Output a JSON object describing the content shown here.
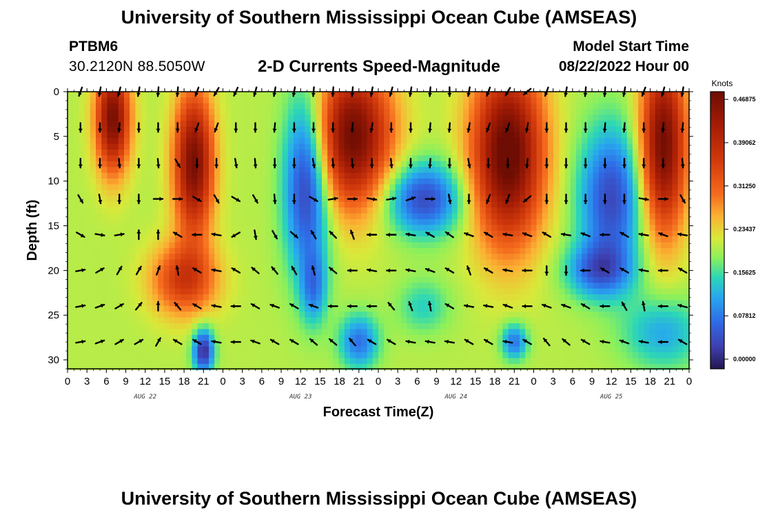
{
  "header": {
    "title_top": "University of Southern Mississippi Ocean Cube (AMSEAS)",
    "title_bottom": "University of Southern Mississippi Ocean Cube (AMSEAS)",
    "station": "PTBM6",
    "coordinates": "30.2120N  88.5050W",
    "subtitle": "2-D Currents Speed-Magnitude",
    "start_label": "Model Start Time",
    "start_value": "08/22/2022 Hour 00"
  },
  "chart_data": {
    "type": "heatmap",
    "title": "2-D Currents Speed-Magnitude",
    "xlabel": "Forecast Time(Z)",
    "ylabel": "Depth (ft)",
    "x_range_hours": [
      0,
      96
    ],
    "y_range_ft": [
      0,
      31
    ],
    "x_tick_hours": [
      0,
      3,
      6,
      9,
      12,
      15,
      18,
      21,
      24,
      27,
      30,
      33,
      36,
      39,
      42,
      45,
      48,
      51,
      54,
      57,
      60,
      63,
      66,
      69,
      72,
      75,
      78,
      81,
      84,
      87,
      90,
      93,
      96
    ],
    "x_tick_labels": [
      "0",
      "3",
      "6",
      "9",
      "12",
      "15",
      "18",
      "21",
      "0",
      "3",
      "6",
      "9",
      "12",
      "15",
      "18",
      "21",
      "0",
      "3",
      "6",
      "9",
      "12",
      "15",
      "18",
      "21",
      "0",
      "3",
      "6",
      "9",
      "12",
      "15",
      "18",
      "21",
      "0"
    ],
    "date_labels": [
      {
        "hour": 12,
        "text": "AUG 22"
      },
      {
        "hour": 36,
        "text": "AUG 23"
      },
      {
        "hour": 60,
        "text": "AUG 24"
      },
      {
        "hour": 84,
        "text": "AUG 25"
      }
    ],
    "y_ticks": [
      0,
      5,
      10,
      15,
      20,
      25,
      30
    ],
    "y_tick_labels": [
      "0",
      "5",
      "10",
      "15",
      "20",
      "25",
      "30"
    ],
    "colorbar": {
      "unit": "Knots",
      "range": [
        0,
        0.5
      ],
      "tick_values": [
        0.46875,
        0.39062,
        0.3125,
        0.23437,
        0.15625,
        0.07812,
        0.0
      ],
      "tick_labels": [
        "0.46875",
        "0.39062",
        "0.31250",
        "0.23437",
        "0.15625",
        "0.07812",
        "0.00000"
      ]
    },
    "arrow_depths_ft": [
      0,
      4,
      8,
      12,
      16,
      20,
      24,
      28
    ],
    "arrow_hours": [
      2,
      5,
      8,
      11,
      14,
      17,
      20,
      23,
      26,
      29,
      32,
      35,
      38,
      41,
      44,
      47,
      50,
      53,
      56,
      59,
      62,
      65,
      68,
      71,
      74,
      77,
      80,
      83,
      86,
      89,
      92,
      95
    ],
    "arrow_dirs_deg": [
      [
        200,
        190,
        195,
        190,
        185,
        185,
        200,
        210,
        205,
        195,
        190,
        190,
        185,
        185,
        185,
        190,
        195,
        190,
        185,
        180,
        190,
        200,
        210,
        230,
        200,
        190,
        185,
        185,
        190,
        200,
        195,
        190
      ],
      [
        180,
        180,
        185,
        180,
        180,
        180,
        200,
        200,
        180,
        180,
        185,
        180,
        180,
        180,
        185,
        190,
        180,
        180,
        185,
        185,
        190,
        200,
        200,
        190,
        180,
        180,
        180,
        185,
        185,
        180,
        185,
        185
      ],
      [
        180,
        180,
        175,
        180,
        175,
        150,
        180,
        180,
        170,
        175,
        180,
        180,
        170,
        175,
        175,
        180,
        175,
        180,
        185,
        180,
        170,
        180,
        180,
        185,
        180,
        180,
        180,
        180,
        180,
        180,
        180,
        175
      ],
      [
        150,
        170,
        180,
        180,
        90,
        90,
        120,
        150,
        120,
        150,
        175,
        180,
        120,
        80,
        90,
        100,
        80,
        70,
        90,
        170,
        180,
        200,
        200,
        230,
        180,
        180,
        180,
        180,
        180,
        100,
        90,
        150
      ],
      [
        120,
        100,
        80,
        0,
        0,
        300,
        270,
        280,
        240,
        170,
        150,
        130,
        330,
        315,
        340,
        270,
        270,
        280,
        300,
        305,
        290,
        300,
        280,
        290,
        300,
        280,
        290,
        270,
        300,
        280,
        290,
        280
      ],
      [
        80,
        60,
        30,
        30,
        20,
        350,
        300,
        280,
        300,
        310,
        320,
        330,
        345,
        310,
        270,
        280,
        270,
        280,
        290,
        300,
        340,
        300,
        280,
        270,
        180,
        180,
        270,
        300,
        300,
        280,
        270,
        300
      ],
      [
        80,
        70,
        60,
        40,
        0,
        320,
        300,
        280,
        270,
        300,
        290,
        300,
        290,
        270,
        270,
        270,
        320,
        340,
        350,
        300,
        280,
        280,
        290,
        270,
        290,
        290,
        300,
        270,
        330,
        350,
        270,
        285
      ],
      [
        80,
        70,
        60,
        60,
        30,
        300,
        300,
        280,
        270,
        290,
        300,
        300,
        310,
        310,
        320,
        300,
        300,
        280,
        280,
        280,
        300,
        300,
        280,
        300,
        320,
        310,
        300,
        280,
        290,
        280,
        270,
        300
      ]
    ]
  }
}
